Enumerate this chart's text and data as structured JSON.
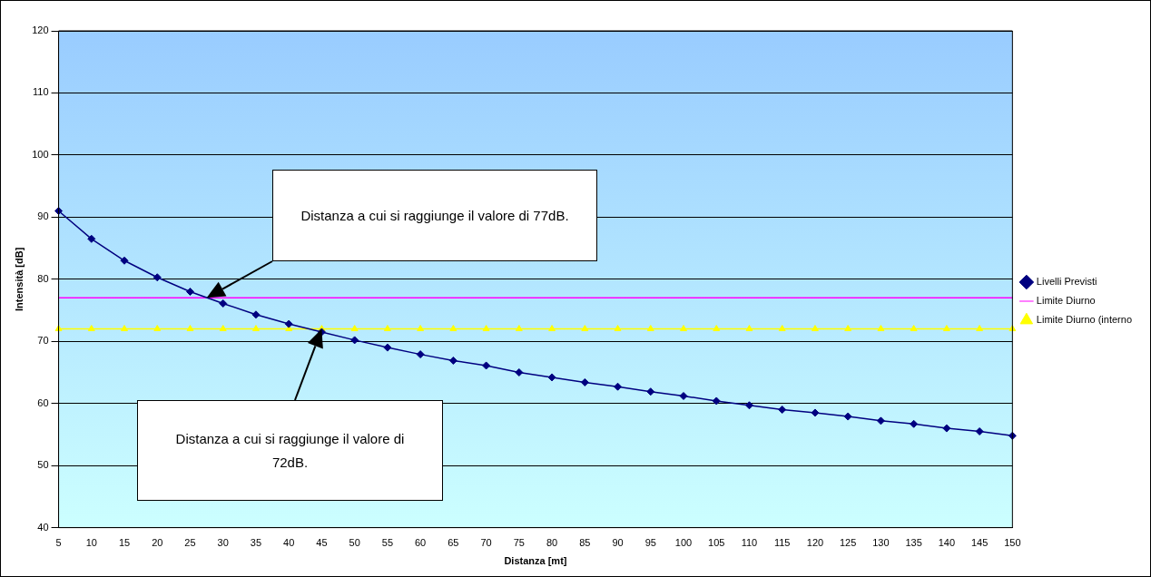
{
  "chart_data": {
    "type": "line",
    "xlabel": "Distanza [mt]",
    "ylabel": "Intensità [dB]",
    "categories": [
      "5",
      "10",
      "15",
      "20",
      "25",
      "30",
      "35",
      "40",
      "45",
      "50",
      "55",
      "60",
      "65",
      "70",
      "75",
      "80",
      "85",
      "90",
      "95",
      "100",
      "105",
      "110",
      "115",
      "120",
      "125",
      "130",
      "135",
      "140",
      "145",
      "150"
    ],
    "series": [
      {
        "name": "Livelli Previsti",
        "color": "#000080",
        "marker": "diamond",
        "values": [
          91,
          86.5,
          83,
          80.3,
          78,
          76.1,
          74.3,
          72.8,
          71.5,
          70.2,
          69,
          67.9,
          66.9,
          66.1,
          65,
          64.2,
          63.4,
          62.7,
          61.9,
          61.2,
          60.4,
          59.7,
          59,
          58.5,
          57.9,
          57.2,
          56.7,
          56,
          55.5,
          54.8
        ]
      },
      {
        "name": "Limite Diurno",
        "color": "#ff00ff",
        "marker": "none",
        "values": [
          77,
          77,
          77,
          77,
          77,
          77,
          77,
          77,
          77,
          77,
          77,
          77,
          77,
          77,
          77,
          77,
          77,
          77,
          77,
          77,
          77,
          77,
          77,
          77,
          77,
          77,
          77,
          77,
          77,
          77
        ]
      },
      {
        "name": "Limite Diurno (interno",
        "color": "#ffff00",
        "marker": "triangle",
        "values": [
          72,
          72,
          72,
          72,
          72,
          72,
          72,
          72,
          72,
          72,
          72,
          72,
          72,
          72,
          72,
          72,
          72,
          72,
          72,
          72,
          72,
          72,
          72,
          72,
          72,
          72,
          72,
          72,
          72,
          72
        ]
      }
    ],
    "ylim": [
      40,
      120
    ],
    "yticks": [
      40,
      50,
      60,
      70,
      80,
      90,
      100,
      110,
      120
    ],
    "grid": "y",
    "legend": "right",
    "annotations": [
      "Distanza a cui si raggiunge il valore di 77dB.",
      "Distanza a cui si raggiunge il valore di 72dB."
    ]
  }
}
